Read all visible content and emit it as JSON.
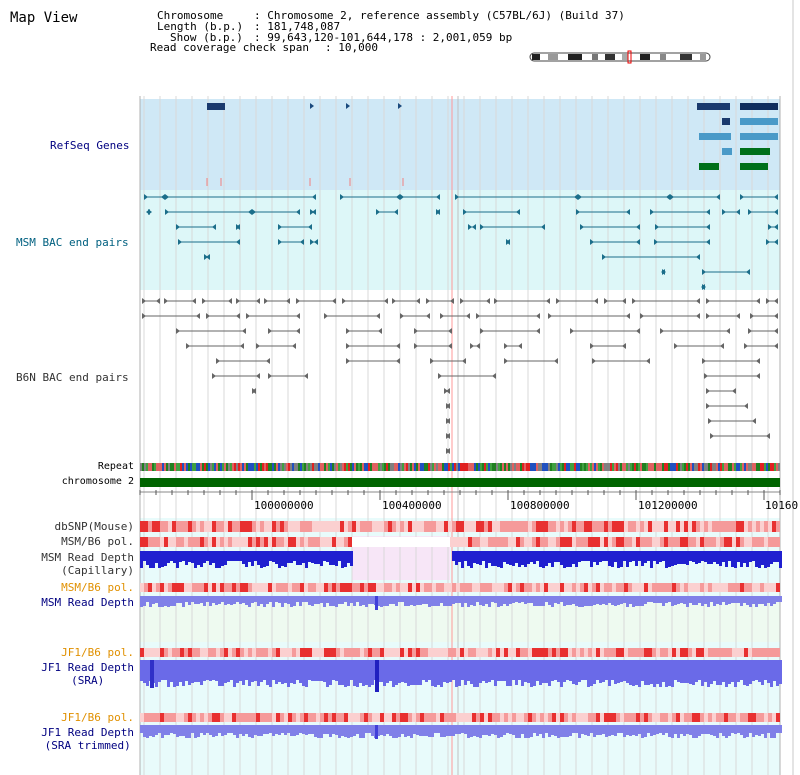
{
  "page": {
    "title": "Map View"
  },
  "info": {
    "chromosome_label": "Chromosome",
    "chromosome_value": ": Chromosome 2, reference assembly (C57BL/6J) (Build 37)",
    "length_label": "Length (b.p.)",
    "length_value": ": 181,748,087",
    "show_label": "Show (b.p.)",
    "show_value": ": 99,643,120-101,644,178 : 2,001,059 bp",
    "coverage_label": "Read coverage check span",
    "coverage_value": ": 10,000"
  },
  "tracks": {
    "refseq": "RefSeq Genes",
    "msm_bac": "MSM BAC end pairs",
    "b6n_bac": "B6N BAC end pairs",
    "repeat": "Repeat",
    "chromosome": "chromosome 2",
    "dbsnp": "dbSNP(Mouse)",
    "msm_pol_1": "MSM/B6 pol.",
    "msm_depth_cap_1": "MSM Read Depth",
    "msm_depth_cap_2": "(Capillary)",
    "msm_pol_2": "MSM/B6 pol.",
    "msm_depth_sra": "MSM Read Depth",
    "jf1_pol_1": "JF1/B6 pol.",
    "jf1_depth_1": "JF1 Read Depth",
    "jf1_depth_1b": "(SRA)",
    "jf1_pol_2": "JF1/B6 pol.",
    "jf1_depth_2": "JF1 Read Depth",
    "jf1_depth_2b": "(SRA trimmed)"
  },
  "ruler": {
    "ticks": [
      "100000000",
      "100400000",
      "100800000",
      "101200000",
      "10160"
    ]
  },
  "colors": {
    "label_blue": "#000080",
    "label_teal": "#006080",
    "label_orange": "#e09000",
    "label_gray": "#333333",
    "refseq_bg": "#cfe8f6",
    "msm_bg": "#ddf7f8",
    "light_bg": "#e8fbfb",
    "chrom_green": "#006400",
    "depth_blue": "#2020d0",
    "sra_blue": "#7070e8"
  }
}
